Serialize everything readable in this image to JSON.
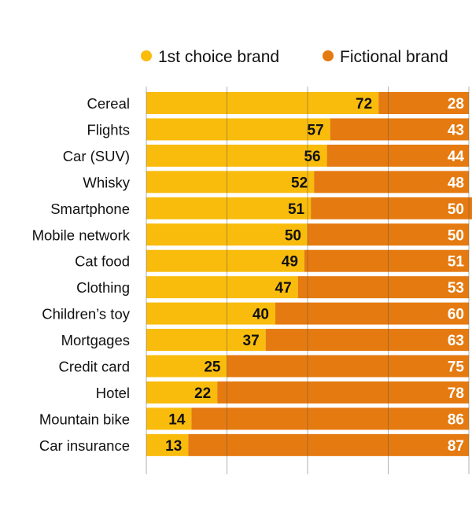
{
  "chart_data": {
    "type": "bar",
    "orientation": "horizontal",
    "stacked": true,
    "categories": [
      "Cereal",
      "Flights",
      "Car (SUV)",
      "Whisky",
      "Smartphone",
      "Mobile network",
      "Cat food",
      "Clothing",
      "Children’s toy",
      "Mortgages",
      "Credit card",
      "Hotel",
      "Mountain bike",
      "Car insurance"
    ],
    "series": [
      {
        "name": "1st choice brand",
        "color": "#f9bc0c",
        "values": [
          72,
          57,
          56,
          52,
          51,
          50,
          49,
          47,
          40,
          37,
          25,
          22,
          14,
          13
        ]
      },
      {
        "name": "Fictional brand",
        "color": "#e57a10",
        "values": [
          28,
          43,
          44,
          48,
          50,
          50,
          51,
          53,
          60,
          63,
          75,
          78,
          86,
          87
        ]
      }
    ],
    "xlim": [
      0,
      100
    ],
    "grid": true,
    "legend": "top-right",
    "data_labels": true
  }
}
